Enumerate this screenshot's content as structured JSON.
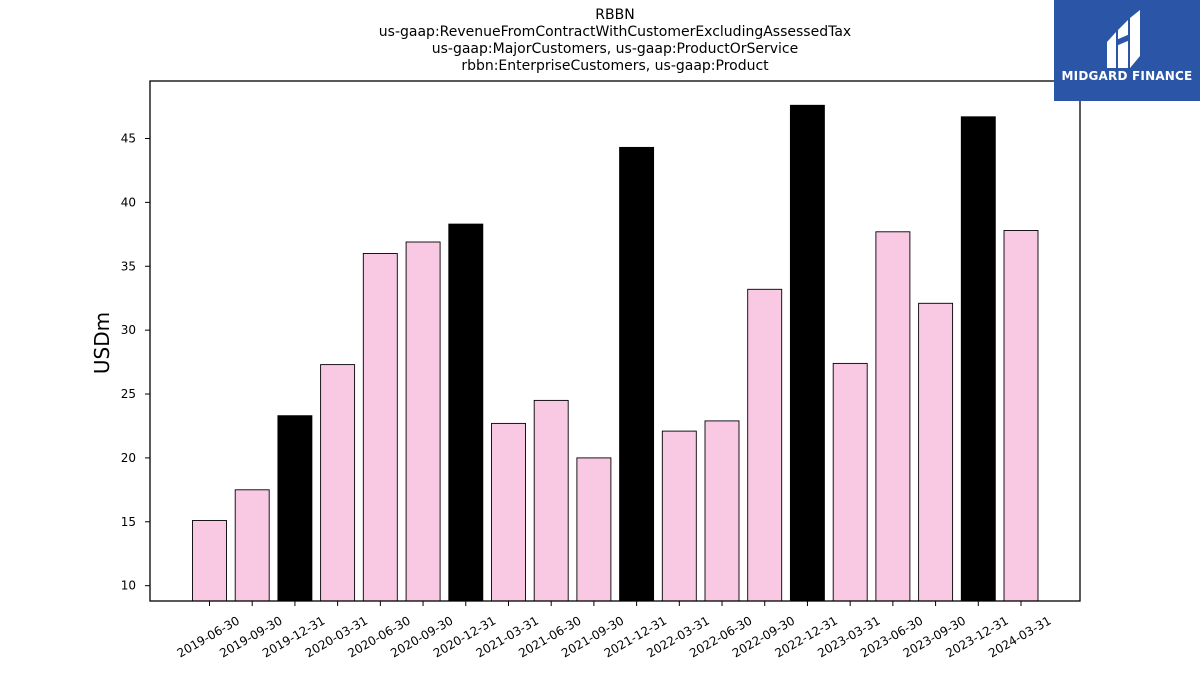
{
  "chart_data": {
    "type": "bar",
    "title_lines": [
      "RBBN",
      "us-gaap:RevenueFromContractWithCustomerExcludingAssessedTax",
      "us-gaap:MajorCustomers, us-gaap:ProductOrService",
      "rbbn:EnterpriseCustomers, us-gaap:Product"
    ],
    "ylabel": "USDm",
    "xlabel": "",
    "ylim": [
      8.8,
      49.5
    ],
    "yticks": [
      10,
      15,
      20,
      25,
      30,
      35,
      40,
      45
    ],
    "categories": [
      "2019-06-30",
      "2019-09-30",
      "2019-12-31",
      "2020-03-31",
      "2020-06-30",
      "2020-09-30",
      "2020-12-31",
      "2021-03-31",
      "2021-06-30",
      "2021-09-30",
      "2021-12-31",
      "2022-03-31",
      "2022-06-30",
      "2022-09-30",
      "2022-12-31",
      "2023-03-31",
      "2023-06-30",
      "2023-09-30",
      "2023-12-31",
      "2024-03-31"
    ],
    "values": [
      15.1,
      17.5,
      23.3,
      27.3,
      36.0,
      36.9,
      38.3,
      22.7,
      24.5,
      20.0,
      44.3,
      22.1,
      22.9,
      33.2,
      47.6,
      27.4,
      37.7,
      32.1,
      46.7,
      37.8
    ],
    "highlight": [
      false,
      false,
      true,
      false,
      false,
      false,
      true,
      false,
      false,
      false,
      true,
      false,
      false,
      false,
      true,
      false,
      false,
      false,
      true,
      false
    ],
    "colors": {
      "default": "#f9c8e3",
      "highlight": "#000000",
      "edge": "#000000"
    },
    "grid": false
  },
  "logo": {
    "text": "MIDGARD FINANCE",
    "background": "#2b56a8"
  }
}
